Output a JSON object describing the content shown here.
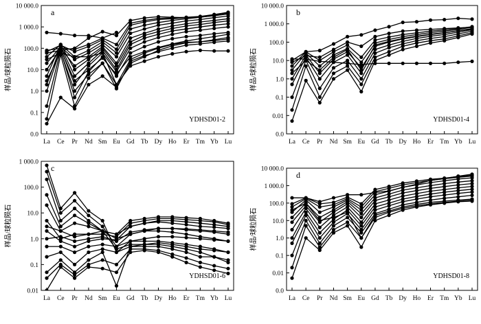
{
  "figure": {
    "background": "#ffffff",
    "line_color": "#000000"
  },
  "chart_data": [
    {
      "panel": "a",
      "type": "line",
      "sample": "YDHSD01-2",
      "ylabel": "样品/球粒陨石",
      "yscale": "log",
      "ylim": [
        0.01,
        10000
      ],
      "yticks": [
        0.01,
        0.1,
        1,
        10,
        100,
        1000,
        10000
      ],
      "ytick_labels": [
        "0.0",
        "0.1",
        "1.0",
        "10.0",
        "100.0",
        "1 000.0",
        "10 000.0"
      ],
      "categories": [
        "La",
        "Ce",
        "Pr",
        "Nd",
        "Sm",
        "Eu",
        "Gd",
        "Tb",
        "Dy",
        "Ho",
        "Er",
        "Tm",
        "Yb",
        "Lu"
      ],
      "series": [
        {
          "values": [
            550,
            480,
            400,
            390,
            300,
            550,
            null,
            null,
            null,
            null,
            null,
            null,
            null,
            null
          ]
        },
        {
          "values": [
            0.03,
            0.5,
            0.15,
            2,
            5,
            1.5,
            20,
            40,
            80,
            130,
            180,
            200,
            250,
            320
          ]
        },
        {
          "values": [
            0.05,
            50,
            0.2,
            4,
            20,
            2,
            30,
            60,
            100,
            150,
            190,
            200,
            230,
            270
          ]
        },
        {
          "values": [
            0.2,
            80,
            0.5,
            8,
            40,
            5,
            60,
            120,
            200,
            280,
            350,
            400,
            480,
            550
          ]
        },
        {
          "values": [
            1,
            100,
            2,
            15,
            60,
            8,
            100,
            200,
            320,
            450,
            600,
            700,
            850,
            1000
          ]
        },
        {
          "values": [
            2,
            120,
            5,
            20,
            80,
            10,
            150,
            300,
            450,
            650,
            800,
            1000,
            1200,
            1400
          ]
        },
        {
          "values": [
            5,
            150,
            10,
            30,
            100,
            15,
            200,
            400,
            600,
            850,
            1100,
            1300,
            1600,
            1900
          ]
        },
        {
          "values": [
            10,
            100,
            15,
            40,
            120,
            20,
            300,
            500,
            800,
            1100,
            1400,
            1700,
            2000,
            2400
          ]
        },
        {
          "values": [
            20,
            120,
            30,
            60,
            150,
            40,
            500,
            800,
            1200,
            1500,
            1900,
            2200,
            2700,
            3200
          ]
        },
        {
          "values": [
            40,
            150,
            40,
            80,
            200,
            60,
            800,
            1200,
            1600,
            2000,
            2400,
            2800,
            3400,
            4000
          ]
        },
        {
          "values": [
            70,
            140,
            70,
            120,
            250,
            90,
            1200,
            1700,
            2200,
            2400,
            2700,
            3000,
            3700,
            4500
          ]
        },
        {
          "values": [
            80,
            100,
            90,
            150,
            300,
            150,
            1500,
            2000,
            2500,
            2600,
            2800,
            3100,
            3800,
            4800
          ]
        },
        {
          "values": [
            60,
            80,
            100,
            300,
            600,
            400,
            2000,
            2600,
            3000,
            2800,
            2700,
            2900,
            3300,
            4000
          ]
        },
        {
          "values": [
            30,
            60,
            40,
            40,
            60,
            2,
            15,
            25,
            40,
            55,
            70,
            80,
            75,
            75
          ]
        },
        {
          "values": [
            10,
            90,
            3,
            10,
            35,
            6,
            40,
            70,
            110,
            160,
            220,
            280,
            350,
            450
          ]
        },
        {
          "values": [
            3,
            70,
            1,
            6,
            20,
            1.3,
            25,
            45,
            70,
            100,
            140,
            160,
            190,
            220
          ]
        }
      ]
    },
    {
      "panel": "b",
      "type": "line",
      "sample": "YDHSD01-4",
      "ylabel": "样品/球粒陨石",
      "yscale": "log",
      "ylim": [
        0.001,
        10000
      ],
      "yticks": [
        0.001,
        0.01,
        0.1,
        1,
        10,
        100,
        1000,
        10000
      ],
      "ytick_labels": [
        "0.0",
        "0.01",
        "0.1",
        "1.0",
        "10.0",
        "100.0",
        "1 000.0",
        "10 000.0"
      ],
      "categories": [
        "La",
        "Ce",
        "Pr",
        "Nd",
        "Sm",
        "Eu",
        "Gd",
        "Tb",
        "Dy",
        "Ho",
        "Er",
        "Tm",
        "Yb",
        "Lu"
      ],
      "series": [
        {
          "values": [
            0.005,
            0.8,
            0.05,
            1,
            3,
            0.2,
            10,
            20,
            40,
            60,
            90,
            120,
            180,
            280
          ]
        },
        {
          "values": [
            0.02,
            5,
            0.1,
            2,
            5,
            0.5,
            15,
            30,
            60,
            90,
            120,
            150,
            220,
            330
          ]
        },
        {
          "values": [
            0.1,
            10,
            0.3,
            4,
            10,
            1,
            25,
            50,
            80,
            120,
            160,
            200,
            280,
            400
          ]
        },
        {
          "values": [
            0.5,
            15,
            1,
            8,
            20,
            2,
            40,
            70,
            110,
            160,
            210,
            260,
            350,
            480
          ]
        },
        {
          "values": [
            1,
            20,
            2,
            12,
            30,
            4,
            60,
            100,
            150,
            200,
            260,
            320,
            420,
            550
          ]
        },
        {
          "values": [
            3,
            25,
            5,
            20,
            45,
            8,
            90,
            140,
            200,
            260,
            330,
            400,
            500,
            650
          ]
        },
        {
          "values": [
            5,
            30,
            10,
            30,
            70,
            15,
            130,
            190,
            260,
            320,
            400,
            470,
            560,
            700
          ]
        },
        {
          "values": [
            10,
            30,
            35,
            80,
            200,
            250,
            450,
            700,
            1200,
            1300,
            1600,
            1700,
            2000,
            1800
          ]
        },
        {
          "values": [
            12,
            12,
            9,
            8,
            7,
            6,
            7,
            7,
            7,
            7,
            7,
            7,
            8,
            9
          ]
        },
        {
          "values": [
            8,
            18,
            15,
            40,
            100,
            60,
            200,
            300,
            400,
            450,
            500,
            550,
            600,
            650
          ]
        },
        {
          "values": [
            2,
            10,
            3,
            15,
            40,
            3,
            70,
            110,
            160,
            210,
            270,
            330,
            420,
            520
          ]
        }
      ]
    },
    {
      "panel": "c",
      "type": "line",
      "sample": "YDHSD01-6",
      "ylabel": "样品/球粒陨石",
      "yscale": "log",
      "ylim": [
        0.01,
        1000
      ],
      "yticks": [
        0.01,
        0.1,
        1,
        10,
        100,
        1000
      ],
      "ytick_labels": [
        "0.01",
        "0.1",
        "1.0",
        "10.0",
        "100.0",
        "1 000.0"
      ],
      "categories": [
        "La",
        "Ce",
        "Pr",
        "Nd",
        "Sm",
        "Eu",
        "Gd",
        "Tb",
        "Dy",
        "Ho",
        "Er",
        "Tm",
        "Yb",
        "Lu"
      ],
      "series": [
        {
          "values": [
            700,
            15,
            60,
            12,
            5,
            0.3,
            0.5,
            0.5,
            0.5,
            0.4,
            0.3,
            0.2,
            0.2,
            0.15
          ]
        },
        {
          "values": [
            400,
            10,
            30,
            8,
            3,
            0.5,
            0.8,
            0.8,
            0.8,
            0.7,
            0.6,
            0.5,
            0.4,
            0.3
          ]
        },
        {
          "values": [
            200,
            5,
            15,
            5,
            2,
            0.4,
            0.6,
            0.6,
            0.6,
            0.5,
            0.4,
            0.3,
            0.2,
            0.12
          ]
        },
        {
          "values": [
            50,
            3,
            8,
            4,
            2,
            1,
            1.5,
            2,
            2,
            1.8,
            1.5,
            1.2,
            1,
            0.8
          ]
        },
        {
          "values": [
            20,
            2,
            4,
            3,
            2,
            1.5,
            3,
            4,
            4.5,
            4,
            3.5,
            3,
            2.8,
            2.5
          ]
        },
        {
          "values": [
            5,
            1,
            1.5,
            1.5,
            1.5,
            1.2,
            4,
            5,
            6,
            6,
            5.5,
            5,
            4.5,
            3.5
          ]
        },
        {
          "values": [
            2,
            0.8,
            0.5,
            0.8,
            1,
            0.9,
            3,
            4,
            5,
            5,
            4.5,
            4,
            3.5,
            3
          ]
        },
        {
          "values": [
            0.5,
            0.5,
            0.3,
            0.5,
            0.6,
            0.5,
            1.5,
            2,
            2.5,
            2.5,
            2.2,
            2,
            1.8,
            1.5
          ]
        },
        {
          "values": [
            0.2,
            0.3,
            0.1,
            0.3,
            0.4,
            0.3,
            0.8,
            1,
            1.2,
            1.2,
            1.1,
            1,
            0.9,
            0.8
          ]
        },
        {
          "values": [
            0.05,
            0.15,
            0.05,
            0.15,
            0.3,
            0.015,
            0.5,
            0.6,
            0.7,
            0.6,
            0.5,
            0.4,
            0.35,
            0.3
          ]
        },
        {
          "values": [
            0.01,
            0.08,
            0.03,
            0.08,
            0.07,
            0.05,
            0.3,
            0.35,
            0.3,
            0.2,
            0.12,
            0.08,
            0.06,
            0.045
          ]
        },
        {
          "values": [
            0.03,
            0.1,
            0.04,
            0.1,
            0.15,
            0.1,
            0.4,
            0.4,
            0.35,
            0.25,
            0.18,
            0.12,
            0.09,
            0.07
          ]
        },
        {
          "values": [
            1,
            1.2,
            0.8,
            1,
            1.2,
            0.8,
            1.8,
            2.2,
            2.5,
            2.5,
            2.4,
            2.2,
            2,
            1.8
          ]
        },
        {
          "values": [
            3,
            2,
            1.2,
            1.5,
            2,
            1.5,
            5,
            6,
            7,
            7,
            6.5,
            6,
            5,
            4
          ]
        }
      ]
    },
    {
      "panel": "d",
      "type": "line",
      "sample": "YDHSD01-8",
      "ylabel": "样品/球粒陨石",
      "yscale": "log",
      "ylim": [
        0.001,
        10000
      ],
      "yticks": [
        0.001,
        0.01,
        0.1,
        1,
        10,
        100,
        1000,
        10000
      ],
      "ytick_labels": [
        "0.0",
        "0.01",
        "0.1",
        "1.0",
        "10.0",
        "100.0",
        "1 000.0",
        "10 000.0"
      ],
      "categories": [
        "La",
        "Ce",
        "Pr",
        "Nd",
        "Sm",
        "Eu",
        "Gd",
        "Tb",
        "Dy",
        "Ho",
        "Er",
        "Tm",
        "Yb",
        "Lu"
      ],
      "series": [
        {
          "values": [
            200,
            200,
            120,
            200,
            300,
            300,
            400,
            500,
            800,
            1200,
            2000,
            2500,
            3500,
            4500
          ]
        },
        {
          "values": [
            0.005,
            1,
            0.2,
            2,
            5,
            0.3,
            10,
            20,
            40,
            60,
            80,
            100,
            120,
            130
          ]
        },
        {
          "values": [
            0.02,
            5,
            0.3,
            3,
            8,
            1,
            15,
            30,
            50,
            70,
            90,
            110,
            130,
            150
          ]
        },
        {
          "values": [
            0.1,
            10,
            0.5,
            5,
            15,
            2,
            25,
            45,
            80,
            110,
            150,
            190,
            230,
            280
          ]
        },
        {
          "values": [
            0.5,
            20,
            1,
            8,
            25,
            3,
            40,
            70,
            120,
            170,
            230,
            290,
            360,
            430
          ]
        },
        {
          "values": [
            1,
            30,
            2,
            12,
            40,
            5,
            60,
            100,
            170,
            240,
            330,
            420,
            520,
            620
          ]
        },
        {
          "values": [
            3,
            50,
            4,
            20,
            60,
            8,
            90,
            150,
            250,
            350,
            480,
            600,
            750,
            900
          ]
        },
        {
          "values": [
            8,
            70,
            8,
            30,
            90,
            15,
            140,
            230,
            380,
            520,
            700,
            880,
            1100,
            1300
          ]
        },
        {
          "values": [
            15,
            100,
            15,
            40,
            120,
            25,
            200,
            330,
            550,
            750,
            1000,
            1300,
            1600,
            1900
          ]
        },
        {
          "values": [
            30,
            150,
            30,
            60,
            150,
            40,
            300,
            480,
            800,
            1100,
            1500,
            1900,
            2400,
            2800
          ]
        },
        {
          "values": [
            60,
            180,
            60,
            80,
            180,
            60,
            450,
            700,
            1100,
            1500,
            2000,
            2500,
            3000,
            3500
          ]
        },
        {
          "values": [
            90,
            200,
            90,
            110,
            220,
            90,
            600,
            900,
            1400,
            1800,
            2300,
            2700,
            3300,
            3900
          ]
        },
        {
          "values": [
            40,
            100,
            10,
            15,
            30,
            1,
            20,
            35,
            60,
            85,
            110,
            130,
            150,
            170
          ]
        }
      ]
    }
  ]
}
